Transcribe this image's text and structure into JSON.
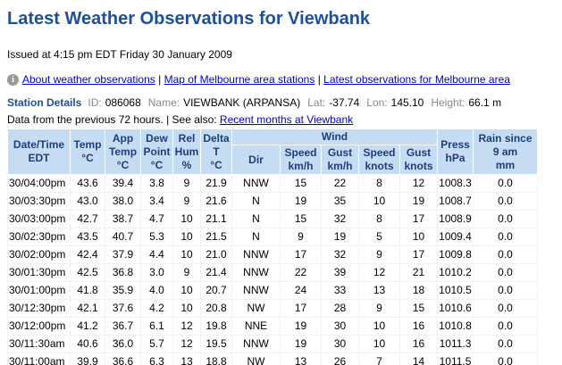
{
  "header": {
    "title": "Latest Weather Observations for Viewbank",
    "issued": "Issued at 4:15 pm EDT Friday 30 January 2009"
  },
  "links": {
    "items": [
      "About weather observations",
      "Map of Melbourne area stations",
      "Latest observations for Melbourne area"
    ],
    "separator": "|"
  },
  "station": {
    "heading": "Station Details",
    "id_label": "ID:",
    "id": "086068",
    "name_label": "Name:",
    "name": "VIEWBANK (ARPANSA)",
    "lat_label": "Lat:",
    "lat": "-37.74",
    "lon_label": "Lon:",
    "lon": "145.10",
    "height_label": "Height:",
    "height": "66.1 m"
  },
  "note": {
    "text": "Data from the previous 72 hours. | See also:",
    "link": "Recent months at Viewbank"
  },
  "table": {
    "header_top": [
      "Date/Time\nEDT",
      "Temp\n°C",
      "App\nTemp\n°C",
      "Dew\nPoint\n°C",
      "Rel\nHum\n%",
      "Delta\nT\n°C",
      "Wind",
      "Press\nhPa",
      "Rain since\n9 am\nmm"
    ],
    "header_sub": [
      "Dir",
      "Speed\nkm/h",
      "Gust\nkm/h",
      "Speed\nknots",
      "Gust\nknots"
    ],
    "rows": [
      [
        "30/04:00pm",
        "43.6",
        "39.4",
        "3.8",
        "9",
        "21.9",
        "NNW",
        "15",
        "22",
        "8",
        "12",
        "1008.3",
        "0.0"
      ],
      [
        "30/03:30pm",
        "43.0",
        "38.0",
        "3.4",
        "9",
        "21.6",
        "N",
        "19",
        "35",
        "10",
        "19",
        "1008.7",
        "0.0"
      ],
      [
        "30/03:00pm",
        "42.7",
        "38.7",
        "4.7",
        "10",
        "21.1",
        "N",
        "15",
        "32",
        "8",
        "17",
        "1008.9",
        "0.0"
      ],
      [
        "30/02:30pm",
        "43.5",
        "40.7",
        "5.3",
        "10",
        "21.5",
        "N",
        "9",
        "19",
        "5",
        "10",
        "1009.4",
        "0.0"
      ],
      [
        "30/02:00pm",
        "42.4",
        "37.9",
        "4.4",
        "10",
        "21.0",
        "NNW",
        "17",
        "32",
        "9",
        "17",
        "1009.8",
        "0.0"
      ],
      [
        "30/01:30pm",
        "42.5",
        "36.8",
        "3.0",
        "9",
        "21.4",
        "NNW",
        "22",
        "39",
        "12",
        "21",
        "1010.2",
        "0.0"
      ],
      [
        "30/01:00pm",
        "41.8",
        "35.9",
        "4.0",
        "10",
        "20.7",
        "NNW",
        "24",
        "33",
        "13",
        "18",
        "1010.5",
        "0.0"
      ],
      [
        "30/12:30pm",
        "42.1",
        "37.6",
        "4.2",
        "10",
        "20.8",
        "NW",
        "17",
        "28",
        "9",
        "15",
        "1010.6",
        "0.0"
      ],
      [
        "30/12:00pm",
        "41.2",
        "36.7",
        "6.1",
        "12",
        "19.8",
        "NNE",
        "19",
        "30",
        "10",
        "16",
        "1010.8",
        "0.0"
      ],
      [
        "30/11:30am",
        "40.6",
        "36.0",
        "5.7",
        "12",
        "19.5",
        "NNW",
        "19",
        "30",
        "10",
        "16",
        "1011.3",
        "0.0"
      ],
      [
        "30/11:00am",
        "39.9",
        "36.6",
        "6.3",
        "13",
        "18.8",
        "NW",
        "13",
        "26",
        "7",
        "14",
        "1011.5",
        "0.0"
      ]
    ]
  }
}
